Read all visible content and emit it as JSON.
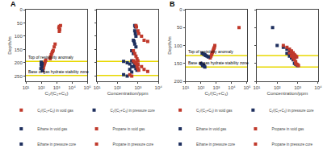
{
  "chart_data": [
    {
      "type": "scatter",
      "title": "A",
      "xlabel": "C₁/(C₂+C₃)",
      "ylabel": "Depth/m",
      "log": "x",
      "grid": false,
      "legend": "bottom",
      "marker": "square",
      "xlim": [
        10,
        100000
      ],
      "xticks": [
        {
          "value": 10,
          "label": "10¹"
        },
        {
          "value": 100,
          "label": "10²"
        },
        {
          "value": 1000,
          "label": "10³"
        },
        {
          "value": 10000,
          "label": "10⁴"
        },
        {
          "value": 100000,
          "label": "10⁵"
        }
      ],
      "ylim": [
        270,
        0
      ],
      "yticks": [
        0,
        50,
        100,
        150,
        200,
        250
      ],
      "series": [
        {
          "name": "C₁/(C₂+C₃) in void gas",
          "color": "#c0392b",
          "x": [
            1800,
            1500,
            1400,
            1600,
            1500,
            800,
            700,
            600,
            550,
            500,
            450,
            400,
            380,
            200,
            180,
            170,
            160,
            150,
            140,
            130
          ],
          "values": [
            60,
            63,
            68,
            75,
            82,
            130,
            140,
            153,
            158,
            163,
            170,
            178,
            185,
            190,
            195,
            200,
            205,
            210,
            220,
            230
          ]
        },
        {
          "name": "C₁/(C₂+C₃) in pressure core",
          "color": "#1e2f5e",
          "x": [
            100,
            115,
            100,
            110,
            95,
            120
          ],
          "values": [
            198,
            203,
            208,
            215,
            222,
            230
          ]
        }
      ],
      "hlines": [
        {
          "y": 195,
          "color": "#e8d800",
          "label": "Top of resistivity anomaly"
        },
        {
          "y": 248,
          "color": "#e8d800",
          "label": "Base of gas hydrate stability zone"
        }
      ]
    },
    {
      "type": "scatter",
      "xlabel": "Concentration/ppm",
      "log": "x",
      "grid": false,
      "legend": "bottom",
      "marker": "square",
      "tick_labels": "x",
      "xlim": [
        10,
        10000
      ],
      "xticks": [
        {
          "value": 10,
          "label": "10¹"
        },
        {
          "value": 100,
          "label": "10²"
        },
        {
          "value": 1000,
          "label": "10³"
        },
        {
          "value": 10000,
          "label": "10⁴"
        }
      ],
      "ylim": [
        270,
        0
      ],
      "yticks": [
        0,
        50,
        100,
        150,
        200,
        250
      ],
      "series": [
        {
          "name": "Ethane in void gas",
          "color": "#1e2f5e",
          "x": [
            700,
            750,
            700,
            750,
            800,
            600,
            650,
            700,
            800,
            500,
            600
          ],
          "values": [
            60,
            65,
            80,
            90,
            100,
            115,
            120,
            130,
            140,
            155,
            165
          ]
        },
        {
          "name": "Propane in void gas",
          "color": "#c0392b",
          "x": [
            800,
            850,
            1000,
            1100,
            1500,
            2000,
            3000,
            600,
            700,
            800,
            900,
            1000
          ],
          "values": [
            60,
            65,
            80,
            90,
            100,
            115,
            120,
            155,
            165,
            175,
            185,
            193
          ]
        },
        {
          "color": "#1e2f5e",
          "x": [
            200,
            300,
            400,
            500,
            400,
            500
          ],
          "values": [
            195,
            200,
            205,
            215,
            225,
            235
          ]
        },
        {
          "color": "#c0392b",
          "x": [
            600,
            800,
            1000,
            1500,
            2000,
            3000
          ],
          "values": [
            195,
            200,
            205,
            215,
            225,
            233
          ]
        },
        {
          "name": "Ethane in pressure core",
          "color": "#1e2f5e",
          "x": [
            500,
            600,
            700,
            800,
            700,
            800,
            900
          ],
          "values": [
            193,
            198,
            203,
            208,
            215,
            222,
            228
          ]
        },
        {
          "name": "Propane in pressure core",
          "color": "#c0392b",
          "x": [
            600,
            700,
            800,
            1000,
            900,
            1000,
            1100
          ],
          "values": [
            193,
            198,
            203,
            208,
            215,
            222,
            228
          ]
        },
        {
          "color": "#1e2f5e",
          "x": [
            200,
            300
          ],
          "values": [
            245,
            250
          ]
        },
        {
          "color": "#c0392b",
          "x": [
            400,
            500
          ],
          "values": [
            245,
            250
          ]
        }
      ],
      "hlines": [
        {
          "y": 195,
          "color": "#e8d800"
        },
        {
          "y": 248,
          "color": "#e8d800"
        }
      ]
    },
    {
      "type": "scatter",
      "title": "B",
      "xlabel": "C₁/(C₂+C₃)",
      "ylabel": "Depth/m",
      "log": "x",
      "grid": false,
      "legend": "bottom",
      "marker": "square",
      "xlim": [
        10,
        100000
      ],
      "xticks": [
        {
          "value": 10,
          "label": "10¹"
        },
        {
          "value": 100,
          "label": "10²"
        },
        {
          "value": 1000,
          "label": "10³"
        },
        {
          "value": 10000,
          "label": "10⁴"
        },
        {
          "value": 100000,
          "label": "10⁵"
        }
      ],
      "ylim": [
        200,
        0
      ],
      "yticks": [
        0,
        50,
        100,
        150,
        200
      ],
      "series": [
        {
          "name": "C₁/(C₂+C₃) in void gas",
          "color": "#c0392b",
          "x": [
            30000,
            800,
            750,
            700,
            650,
            600,
            550,
            500,
            450,
            400
          ],
          "values": [
            50,
            100,
            105,
            108,
            112,
            116,
            120,
            125,
            130,
            135
          ]
        },
        {
          "name": "C₁/(C₂+C₃) in pressure core",
          "color": "#1e2f5e",
          "x": [
            120,
            150,
            180,
            200,
            250,
            300,
            100,
            120,
            150,
            130,
            160,
            180
          ],
          "values": [
            122,
            124,
            126,
            128,
            130,
            132,
            150,
            152,
            154,
            156,
            158,
            160
          ]
        }
      ],
      "hlines": [
        {
          "y": 128,
          "color": "#e8d800",
          "label": "Top of resistivity anomaly"
        },
        {
          "y": 160,
          "color": "#e8d800",
          "label": "Base of gas hydrate stability zone"
        }
      ]
    },
    {
      "type": "scatter",
      "xlabel": "Concentration/ppm",
      "log": "x",
      "grid": false,
      "legend": "bottom",
      "marker": "square",
      "tick_labels": "x",
      "xlim": [
        10,
        10000
      ],
      "xticks": [
        {
          "value": 10,
          "label": "10¹"
        },
        {
          "value": 100,
          "label": "10²"
        },
        {
          "value": 1000,
          "label": "10³"
        },
        {
          "value": 10000,
          "label": "10⁴"
        }
      ],
      "ylim": [
        200,
        0
      ],
      "yticks": [
        0,
        50,
        100,
        150,
        200
      ],
      "series": [
        {
          "name": "Ethane in void gas",
          "color": "#1e2f5e",
          "x": [
            60,
            100,
            200,
            300,
            400,
            500,
            600
          ],
          "values": [
            50,
            100,
            105,
            110,
            115,
            120,
            125
          ]
        },
        {
          "name": "Propane in void gas",
          "color": "#c0392b",
          "x": [
            200,
            300,
            400,
            500,
            600,
            700,
            800
          ],
          "values": [
            100,
            105,
            110,
            115,
            120,
            125,
            130
          ]
        },
        {
          "name": "Ethane in pressure core",
          "color": "#1e2f5e",
          "x": [
            300,
            400,
            500,
            600,
            700,
            800,
            700,
            800,
            900,
            1000
          ],
          "values": [
            122,
            124,
            126,
            128,
            130,
            132,
            150,
            152,
            154,
            156
          ]
        },
        {
          "name": "Propane in pressure core",
          "color": "#c0392b",
          "x": [
            400,
            500,
            600,
            700,
            800,
            900,
            800,
            900,
            1000,
            1100
          ],
          "values": [
            122,
            124,
            126,
            128,
            130,
            132,
            150,
            152,
            154,
            156
          ]
        },
        {
          "color": "#1e2f5e",
          "x": [
            400,
            500,
            600
          ],
          "values": [
            130,
            135,
            140
          ]
        },
        {
          "color": "#c0392b",
          "x": [
            500,
            600,
            700,
            800
          ],
          "values": [
            130,
            135,
            140,
            145
          ]
        }
      ],
      "hlines": [
        {
          "y": 128,
          "color": "#e8d800"
        },
        {
          "y": 160,
          "color": "#e8d800"
        }
      ]
    }
  ]
}
